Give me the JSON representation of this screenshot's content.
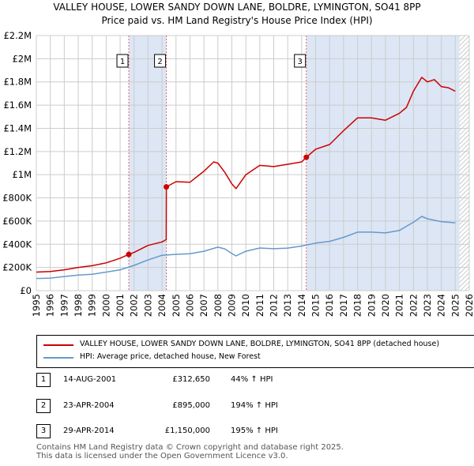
{
  "title_line1": "VALLEY HOUSE, LOWER SANDY DOWN LANE, BOLDRE, LYMINGTON, SO41 8PP",
  "title_line2": "Price paid vs. HM Land Registry's House Price Index (HPI)",
  "colors": {
    "property": "#cc0000",
    "hpi": "#6699cc",
    "shade": "#dce6f5",
    "grid": "#cccccc",
    "marker_line": "#e06666"
  },
  "chart_data": {
    "type": "line",
    "xlim": [
      1995,
      2026
    ],
    "ylim": [
      0,
      2200000
    ],
    "x_ticks": [
      "1995",
      "1996",
      "1997",
      "1998",
      "1999",
      "2000",
      "2001",
      "2002",
      "2003",
      "2004",
      "2005",
      "2006",
      "2007",
      "2008",
      "2009",
      "2010",
      "2011",
      "2012",
      "2013",
      "2014",
      "2015",
      "2016",
      "2017",
      "2018",
      "2019",
      "2020",
      "2021",
      "2022",
      "2023",
      "2024",
      "2025",
      "2026"
    ],
    "y_ticks": [
      {
        "value": 0,
        "label": "£0"
      },
      {
        "value": 200000,
        "label": "£200K"
      },
      {
        "value": 400000,
        "label": "£400K"
      },
      {
        "value": 600000,
        "label": "£600K"
      },
      {
        "value": 800000,
        "label": "£800K"
      },
      {
        "value": 1000000,
        "label": "£1M"
      },
      {
        "value": 1200000,
        "label": "£1.2M"
      },
      {
        "value": 1400000,
        "label": "£1.4M"
      },
      {
        "value": 1600000,
        "label": "£1.6M"
      },
      {
        "value": 1800000,
        "label": "£1.8M"
      },
      {
        "value": 2000000,
        "label": "£2M"
      },
      {
        "value": 2200000,
        "label": "£2.2M"
      }
    ],
    "shaded_ranges": [
      [
        2001.62,
        2004.31
      ],
      [
        2014.33,
        2025.3
      ]
    ],
    "hatched_from": 2025.3,
    "series": [
      {
        "name": "VALLEY HOUSE, LOWER SANDY DOWN LANE, BOLDRE, LYMINGTON, SO41 8PP (detached house)",
        "color": "#cc0000",
        "x": [
          1995,
          1996,
          1997,
          1998,
          1999,
          2000,
          2001,
          2001.62,
          2002,
          2003,
          2004,
          2004.3,
          2004.31,
          2005,
          2006,
          2007,
          2007.7,
          2008,
          2008.5,
          2009,
          2009.3,
          2010,
          2011,
          2012,
          2013,
          2014,
          2014.33,
          2015,
          2016,
          2017,
          2018,
          2019,
          2020,
          2021,
          2021.5,
          2022,
          2022.6,
          2023,
          2023.5,
          2024,
          2024.5,
          2025
        ],
        "values": [
          160000,
          165000,
          180000,
          200000,
          215000,
          240000,
          280000,
          312650,
          330000,
          390000,
          420000,
          440000,
          895000,
          940000,
          935000,
          1030000,
          1110000,
          1100000,
          1020000,
          920000,
          880000,
          1000000,
          1080000,
          1070000,
          1090000,
          1110000,
          1150000,
          1220000,
          1260000,
          1380000,
          1490000,
          1490000,
          1470000,
          1530000,
          1580000,
          1720000,
          1840000,
          1800000,
          1820000,
          1760000,
          1750000,
          1720000
        ]
      },
      {
        "name": "HPI: Average price, detached house, New Forest",
        "color": "#6699cc",
        "x": [
          1995,
          1996,
          1997,
          1998,
          1999,
          2000,
          2001,
          2002,
          2003,
          2004,
          2005,
          2006,
          2007,
          2008,
          2008.5,
          2009,
          2009.3,
          2010,
          2011,
          2012,
          2013,
          2014,
          2015,
          2016,
          2017,
          2018,
          2019,
          2020,
          2021,
          2022,
          2022.6,
          2023,
          2024,
          2025
        ],
        "values": [
          105000,
          108000,
          122000,
          135000,
          142000,
          160000,
          180000,
          218000,
          265000,
          305000,
          313000,
          318000,
          340000,
          375000,
          360000,
          320000,
          300000,
          340000,
          368000,
          362000,
          367000,
          385000,
          410000,
          425000,
          460000,
          505000,
          505000,
          498000,
          520000,
          590000,
          640000,
          620000,
          595000,
          585000
        ]
      }
    ],
    "sales": [
      {
        "id": "1",
        "x": 2001.62,
        "value": 312650
      },
      {
        "id": "2",
        "x": 2004.31,
        "value": 895000
      },
      {
        "id": "3",
        "x": 2014.33,
        "value": 1150000
      }
    ]
  },
  "legend": {
    "property_label": "VALLEY HOUSE, LOWER SANDY DOWN LANE, BOLDRE, LYMINGTON, SO41 8PP (detached house)",
    "hpi_label": "HPI: Average price, detached house, New Forest"
  },
  "transactions": [
    {
      "num": "1",
      "date": "14-AUG-2001",
      "price": "£312,650",
      "hpi": "44% ↑ HPI"
    },
    {
      "num": "2",
      "date": "23-APR-2004",
      "price": "£895,000",
      "hpi": "194% ↑ HPI"
    },
    {
      "num": "3",
      "date": "29-APR-2014",
      "price": "£1,150,000",
      "hpi": "195% ↑ HPI"
    }
  ],
  "footer_line1": "Contains HM Land Registry data © Crown copyright and database right 2025.",
  "footer_line2": "This data is licensed under the Open Government Licence v3.0."
}
